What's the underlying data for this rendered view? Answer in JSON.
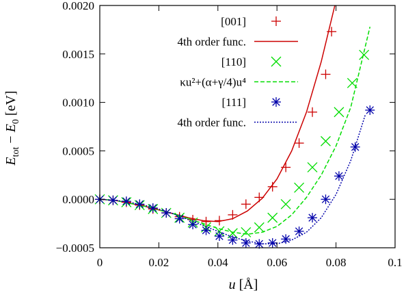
{
  "chart_data": {
    "type": "scatter",
    "title": "",
    "xlabel": "u [Å]",
    "ylabel": "E_tot − E_0 [eV]",
    "xlim": [
      0,
      0.1
    ],
    "ylim": [
      -0.0005,
      0.002
    ],
    "x_ticks": [
      0,
      0.02,
      0.04,
      0.06,
      0.08,
      0.1
    ],
    "x_tick_labels": [
      "0",
      "0.02",
      "0.04",
      "0.06",
      "0.08",
      "0.1"
    ],
    "y_ticks": [
      -0.0005,
      0.0,
      0.0005,
      0.001,
      0.0015,
      0.002
    ],
    "y_tick_labels": [
      "−0.0005",
      "0.0000",
      "0.0005",
      "0.0010",
      "0.0015",
      "0.0020"
    ],
    "legend_position": "top-right",
    "series": [
      {
        "name": "[001]",
        "kind": "points",
        "marker": "plus",
        "color": "#cc0000",
        "x": [
          0,
          0.0045,
          0.009,
          0.0135,
          0.018,
          0.0225,
          0.027,
          0.0315,
          0.036,
          0.0405,
          0.045,
          0.0495,
          0.054,
          0.0585,
          0.063,
          0.0675,
          0.072,
          0.0765,
          0.0785
        ],
        "y": [
          0,
          -1e-05,
          -3e-05,
          -6e-05,
          -0.0001,
          -0.00014,
          -0.00018,
          -0.00021,
          -0.00023,
          -0.00022,
          -0.00016,
          -5e-05,
          2e-05,
          0.00013,
          0.00033,
          0.00058,
          0.0009,
          0.00129,
          0.00173
        ]
      },
      {
        "name": "4th order func.",
        "kind": "line",
        "style": "solid",
        "color": "#cc0000",
        "x": [
          0,
          0.005,
          0.01,
          0.015,
          0.02,
          0.025,
          0.03,
          0.035,
          0.04,
          0.045,
          0.05,
          0.055,
          0.06,
          0.065,
          0.07,
          0.075,
          0.08
        ],
        "y": [
          0,
          -1e-05,
          -4e-05,
          -7e-05,
          -0.00011,
          -0.00015,
          -0.00019,
          -0.00022,
          -0.00023,
          -0.0002,
          -0.00012,
          1e-05,
          0.00021,
          0.0005,
          0.0009,
          0.00142,
          0.00205
        ]
      },
      {
        "name": "[110]",
        "kind": "points",
        "marker": "x",
        "color": "#00dd00",
        "x": [
          0,
          0.0045,
          0.009,
          0.0135,
          0.018,
          0.0225,
          0.027,
          0.0315,
          0.036,
          0.0405,
          0.045,
          0.0495,
          0.054,
          0.0585,
          0.063,
          0.0675,
          0.072,
          0.0765,
          0.081,
          0.0855,
          0.0895
        ],
        "y": [
          0,
          -1e-05,
          -3e-05,
          -6e-05,
          -0.0001,
          -0.00014,
          -0.00019,
          -0.00024,
          -0.00029,
          -0.00033,
          -0.00035,
          -0.00034,
          -0.00029,
          -0.00019,
          -5e-05,
          0.00012,
          0.00033,
          0.0006,
          0.0009,
          0.0012,
          0.00149
        ]
      },
      {
        "name": "κu²+(α+γ/4)u⁴",
        "kind": "line",
        "style": "dashed",
        "color": "#00dd00",
        "x": [
          0,
          0.005,
          0.01,
          0.015,
          0.02,
          0.025,
          0.03,
          0.035,
          0.04,
          0.045,
          0.05,
          0.055,
          0.06,
          0.065,
          0.07,
          0.075,
          0.08,
          0.085,
          0.0915
        ],
        "y": [
          0,
          -1e-05,
          -4e-05,
          -7e-05,
          -0.00011,
          -0.00015,
          -0.0002,
          -0.00025,
          -0.0003,
          -0.00034,
          -0.00036,
          -0.00034,
          -0.00028,
          -0.00016,
          2e-05,
          0.00025,
          0.00055,
          0.00095,
          0.00178
        ]
      },
      {
        "name": "[111]",
        "kind": "points",
        "marker": "star",
        "color": "#0000aa",
        "x": [
          0,
          0.0045,
          0.009,
          0.0135,
          0.018,
          0.0225,
          0.027,
          0.0315,
          0.036,
          0.0405,
          0.045,
          0.0495,
          0.054,
          0.0585,
          0.063,
          0.0675,
          0.072,
          0.0765,
          0.081,
          0.0865,
          0.0915
        ],
        "y": [
          0,
          -1e-05,
          -2e-05,
          -5e-05,
          -9e-05,
          -0.00014,
          -0.0002,
          -0.00026,
          -0.00032,
          -0.00038,
          -0.00042,
          -0.00045,
          -0.00046,
          -0.00045,
          -0.00041,
          -0.00033,
          -0.00019,
          0.0,
          0.00024,
          0.00054,
          0.00092
        ]
      },
      {
        "name": "4th order func.",
        "kind": "line",
        "style": "dotted",
        "color": "#0000aa",
        "x": [
          0,
          0.005,
          0.01,
          0.015,
          0.02,
          0.025,
          0.03,
          0.035,
          0.04,
          0.045,
          0.05,
          0.055,
          0.06,
          0.065,
          0.07,
          0.075,
          0.08,
          0.085,
          0.09
        ],
        "y": [
          0,
          -1e-05,
          -3e-05,
          -6e-05,
          -0.0001,
          -0.00015,
          -0.00021,
          -0.00027,
          -0.00033,
          -0.00039,
          -0.00043,
          -0.00046,
          -0.00046,
          -0.00042,
          -0.00034,
          -0.00019,
          5e-05,
          0.0004,
          0.00088
        ]
      }
    ]
  }
}
